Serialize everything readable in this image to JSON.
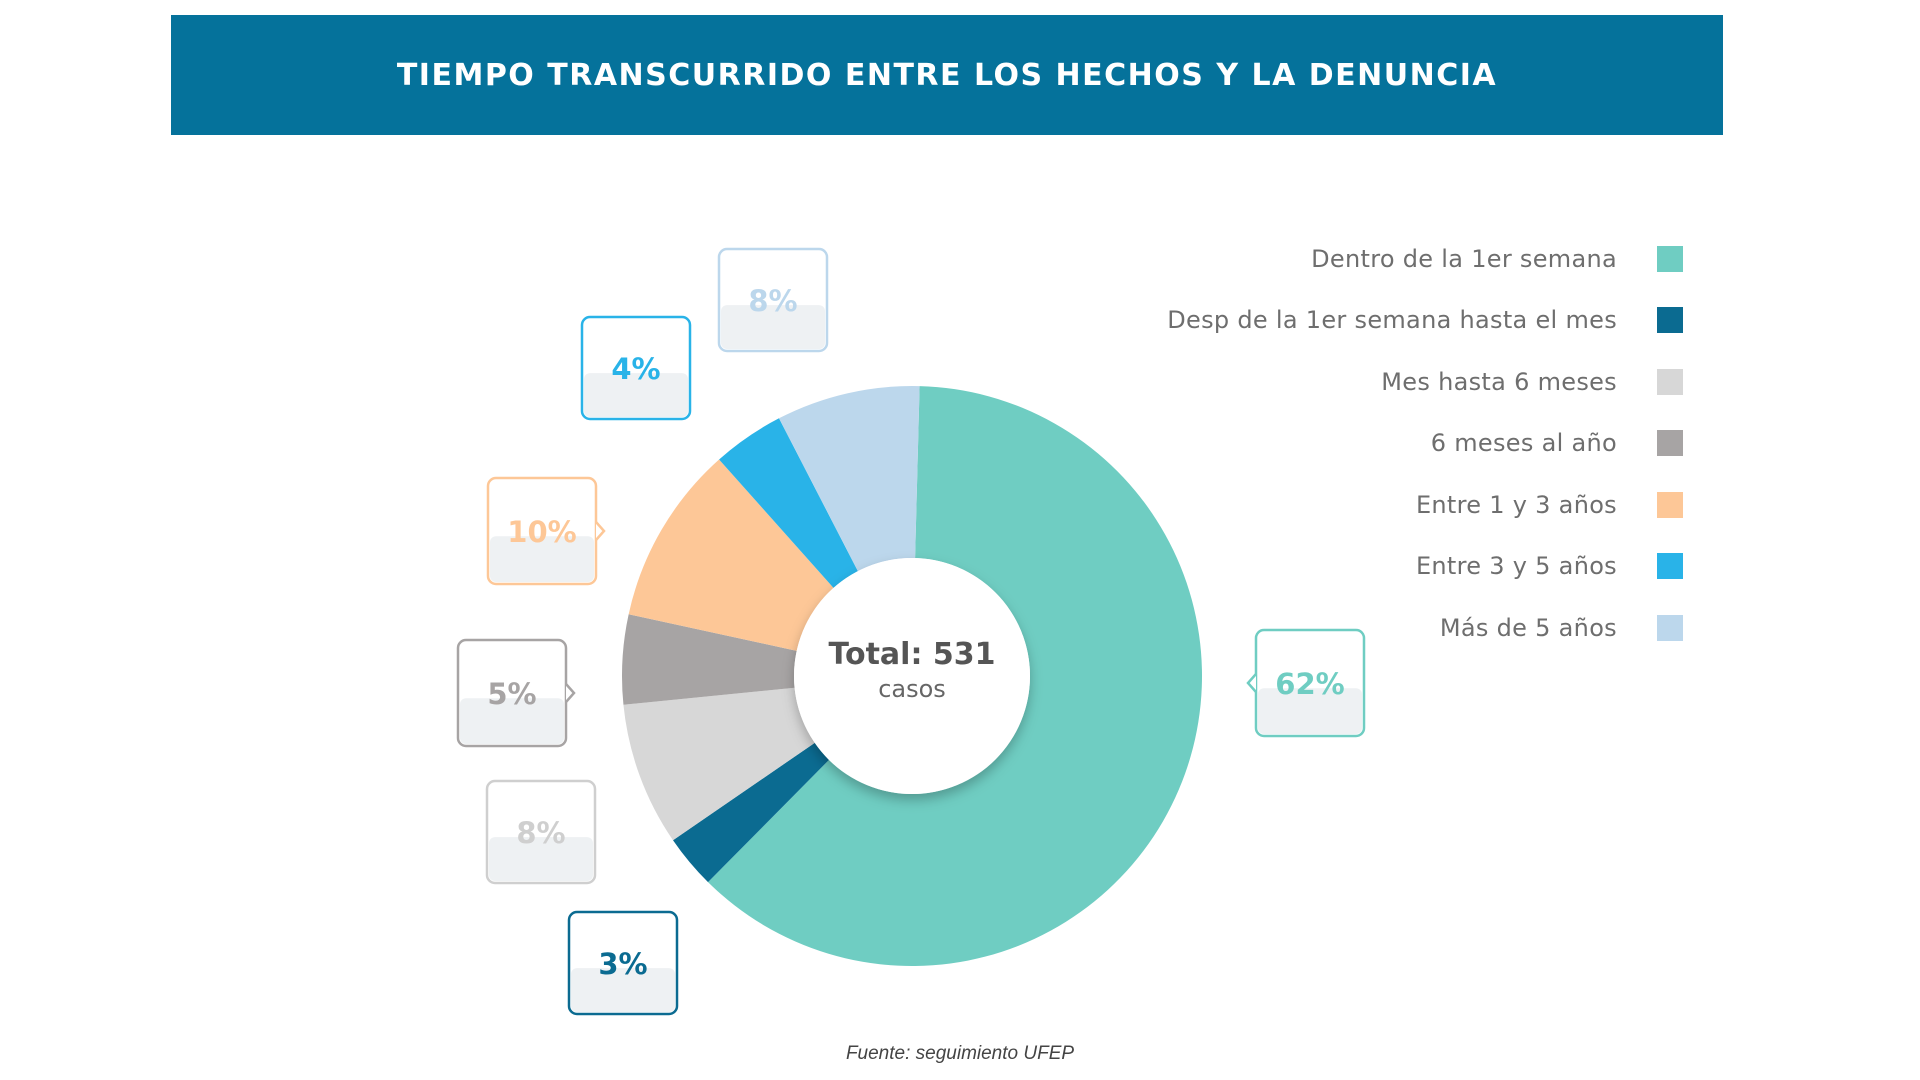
{
  "title": "TIEMPO TRANSCURRIDO ENTRE LOS HECHOS Y LA DENUNCIA",
  "center": {
    "total": "Total: 531",
    "unit": "casos"
  },
  "source": "Fuente: seguimiento UFEP",
  "chart_data": {
    "type": "pie",
    "total_cases": 531,
    "categories": [
      "Dentro de la 1er semana",
      "Desp de la 1er semana hasta el mes",
      "Mes hasta 6 meses",
      "6 meses al año",
      "Entre 1 y 3 años",
      "Entre 3 y 5 años",
      "Más de 5 años"
    ],
    "values": [
      62,
      3,
      8,
      5,
      10,
      4,
      8
    ],
    "labels": [
      "62%",
      "3%",
      "8%",
      "5%",
      "10%",
      "4%",
      "8%"
    ],
    "colors": [
      "#6fcdc2",
      "#0b6b91",
      "#d7d7d7",
      "#a7a4a4",
      "#fdc797",
      "#29b3e8",
      "#bcd7ec"
    ],
    "label_text_colors": [
      "#6fcdc2",
      "#0b6b91",
      "#cfcfcf",
      "#a7a4a4",
      "#fdc797",
      "#29b3e8",
      "#bcd7ec"
    ],
    "legend_position": "right",
    "donut": true
  }
}
